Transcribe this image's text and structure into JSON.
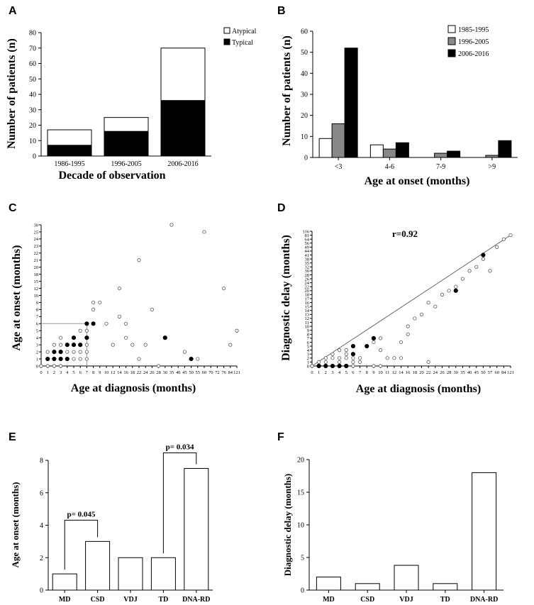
{
  "chart_data": [
    {
      "panel": "A",
      "type": "bar",
      "stacked": true,
      "categories": [
        "1986-1995",
        "1996-2005",
        "2006-2016"
      ],
      "series": [
        {
          "name": "Typical",
          "values": [
            7,
            16,
            36
          ],
          "color": "#000000"
        },
        {
          "name": "Atypical",
          "values": [
            10,
            9,
            34
          ],
          "color": "#ffffff"
        }
      ],
      "legend_order": [
        "Atypical",
        "Typical"
      ],
      "ylabel": "Number of patients (n)",
      "xlabel": "Decade of observation",
      "ylim": [
        0,
        80
      ],
      "yticks": [
        0,
        10,
        20,
        30,
        40,
        50,
        60,
        70,
        80
      ],
      "legend": "top-right"
    },
    {
      "panel": "B",
      "type": "bar",
      "categories": [
        "<3",
        "4-6",
        "7-9",
        ">9"
      ],
      "series": [
        {
          "name": "1985-1995",
          "values": [
            9,
            6,
            0,
            0
          ],
          "color": "#ffffff"
        },
        {
          "name": "1996-2005",
          "values": [
            16,
            4,
            2,
            1
          ],
          "color": "#888888"
        },
        {
          "name": "2006-2016",
          "values": [
            52,
            7,
            3,
            8
          ],
          "color": "#000000"
        }
      ],
      "ylabel": "Number of patients (n)",
      "xlabel": "Age at onset (months)",
      "ylim": [
        0,
        60
      ],
      "yticks": [
        0,
        10,
        20,
        30,
        40,
        50,
        60
      ],
      "legend": "top-right"
    },
    {
      "panel": "C",
      "type": "scatter",
      "xlabel": "Age at diagnosis (months)",
      "ylabel": "Age at onset (months)",
      "xticks": [
        "0",
        "1",
        "2",
        "3",
        "4",
        "5",
        "6",
        "7",
        "8",
        "9",
        "10",
        "12",
        "14",
        "16",
        "18",
        "22",
        "24",
        "26",
        "28",
        "30",
        "35",
        "40",
        "45",
        "50",
        "55",
        "60",
        "70",
        "72",
        "76",
        "84",
        "121"
      ],
      "yticks": [
        "0",
        "1",
        "2",
        "3",
        "4",
        "5",
        "6",
        "7",
        "8",
        "9",
        "10",
        "12",
        "15",
        "18",
        "20",
        "21",
        "22",
        "23",
        "24",
        "25",
        "30"
      ],
      "reference_lines": {
        "x": "7",
        "y": "6"
      },
      "points_open": [
        [
          "0",
          "0"
        ],
        [
          "1",
          "0"
        ],
        [
          "2",
          "0"
        ],
        [
          "3",
          "0"
        ],
        [
          "1",
          "1"
        ],
        [
          "1",
          "2"
        ],
        [
          "2",
          "3"
        ],
        [
          "3",
          "4"
        ],
        [
          "4",
          "2"
        ],
        [
          "2",
          "2"
        ],
        [
          "3",
          "3"
        ],
        [
          "5",
          "2"
        ],
        [
          "5",
          "1"
        ],
        [
          "6",
          "1"
        ],
        [
          "6",
          "2"
        ],
        [
          "6",
          "5"
        ],
        [
          "7",
          "1"
        ],
        [
          "7",
          "2"
        ],
        [
          "7",
          "3"
        ],
        [
          "7",
          "5"
        ],
        [
          "8",
          "8"
        ],
        [
          "8",
          "9"
        ],
        [
          "9",
          "9"
        ],
        [
          "10",
          "6"
        ],
        [
          "12",
          "3"
        ],
        [
          "14",
          "12"
        ],
        [
          "14",
          "7"
        ],
        [
          "16",
          "6"
        ],
        [
          "16",
          "4"
        ],
        [
          "18",
          "3"
        ],
        [
          "22",
          "21"
        ],
        [
          "22",
          "1"
        ],
        [
          "24",
          "3"
        ],
        [
          "26",
          "8"
        ],
        [
          "28",
          "0"
        ],
        [
          "35",
          "30"
        ],
        [
          "45",
          "2"
        ],
        [
          "55",
          "1"
        ],
        [
          "60",
          "25"
        ],
        [
          "76",
          "12"
        ],
        [
          "84",
          "3"
        ],
        [
          "121",
          "5"
        ]
      ],
      "points_filled": [
        [
          "1",
          "1"
        ],
        [
          "2",
          "1"
        ],
        [
          "2",
          "2"
        ],
        [
          "3",
          "1"
        ],
        [
          "3",
          "2"
        ],
        [
          "4",
          "1"
        ],
        [
          "4",
          "3"
        ],
        [
          "5",
          "3"
        ],
        [
          "5",
          "4"
        ],
        [
          "6",
          "3"
        ],
        [
          "7",
          "6"
        ],
        [
          "7",
          "4"
        ],
        [
          "8",
          "6"
        ],
        [
          "30",
          "4"
        ],
        [
          "50",
          "1"
        ]
      ]
    },
    {
      "panel": "D",
      "type": "scatter",
      "xlabel": "Age at diagnosis (months)",
      "ylabel": "Diagnostic delay (months)",
      "annotation": "r=0.92",
      "xticks": [
        "0",
        "1",
        "2",
        "3",
        "4",
        "5",
        "6",
        "7",
        "8",
        "9",
        "10",
        "11",
        "12",
        "14",
        "16",
        "18",
        "20",
        "22",
        "24",
        "26",
        "28",
        "30",
        "35",
        "40",
        "45",
        "50",
        "57",
        "60",
        "84",
        "121"
      ],
      "yticks": [
        "0",
        "1",
        "2",
        "3",
        "4",
        "5",
        "6",
        "7",
        "8",
        "9",
        "10",
        "11",
        "12",
        "13",
        "14",
        "15",
        "16",
        "17",
        "18",
        "20",
        "22",
        "24",
        "26",
        "28",
        "30",
        "32",
        "35",
        "38",
        "41",
        "44",
        "49",
        "56",
        "64",
        "81",
        "116"
      ],
      "regression_line": {
        "from": [
          "0",
          "0"
        ],
        "to": [
          "121",
          "81"
        ]
      },
      "points_open": [
        [
          "0",
          "0"
        ],
        [
          "1",
          "1"
        ],
        [
          "2",
          "1"
        ],
        [
          "2",
          "2"
        ],
        [
          "3",
          "2"
        ],
        [
          "3",
          "3"
        ],
        [
          "4",
          "1"
        ],
        [
          "4",
          "2"
        ],
        [
          "4",
          "4"
        ],
        [
          "5",
          "2"
        ],
        [
          "5",
          "3"
        ],
        [
          "5",
          "4"
        ],
        [
          "6",
          "0"
        ],
        [
          "6",
          "1"
        ],
        [
          "6",
          "2"
        ],
        [
          "7",
          "1"
        ],
        [
          "7",
          "2"
        ],
        [
          "9",
          "0"
        ],
        [
          "9",
          "6"
        ],
        [
          "10",
          "0"
        ],
        [
          "10",
          "4"
        ],
        [
          "10",
          "7"
        ],
        [
          "11",
          "2"
        ],
        [
          "12",
          "2"
        ],
        [
          "14",
          "2"
        ],
        [
          "14",
          "6"
        ],
        [
          "16",
          "8"
        ],
        [
          "16",
          "10"
        ],
        [
          "18",
          "12"
        ],
        [
          "20",
          "13"
        ],
        [
          "22",
          "1"
        ],
        [
          "22",
          "16"
        ],
        [
          "24",
          "15"
        ],
        [
          "26",
          "18"
        ],
        [
          "28",
          "20"
        ],
        [
          "30",
          "22"
        ],
        [
          "35",
          "26"
        ],
        [
          "40",
          "30"
        ],
        [
          "45",
          "32"
        ],
        [
          "50",
          "38"
        ],
        [
          "57",
          "30"
        ],
        [
          "60",
          "49"
        ],
        [
          "84",
          "64"
        ],
        [
          "121",
          "81"
        ]
      ],
      "points_filled": [
        [
          "1",
          "0"
        ],
        [
          "2",
          "0"
        ],
        [
          "3",
          "0"
        ],
        [
          "4",
          "0"
        ],
        [
          "5",
          "0"
        ],
        [
          "6",
          "3"
        ],
        [
          "6",
          "5"
        ],
        [
          "8",
          "5"
        ],
        [
          "9",
          "7"
        ],
        [
          "30",
          "20"
        ],
        [
          "50",
          "41"
        ]
      ]
    },
    {
      "panel": "E",
      "type": "bar",
      "categories": [
        "MD",
        "CSD",
        "VDJ",
        "TD",
        "DNA-RD"
      ],
      "values": [
        1,
        3,
        2,
        2,
        7.5
      ],
      "ylabel": "Age at onset (months)",
      "ylim": [
        0,
        8
      ],
      "yticks": [
        0,
        2,
        4,
        6,
        8
      ],
      "annotations": [
        {
          "label": "p= 0.045",
          "from": "MD",
          "to": "CSD"
        },
        {
          "label": "p= 0.034",
          "from": "TD",
          "to": "DNA-RD"
        }
      ]
    },
    {
      "panel": "F",
      "type": "bar",
      "categories": [
        "MD",
        "CSD",
        "VDJ",
        "TD",
        "DNA-RD"
      ],
      "values": [
        2,
        1,
        3.8,
        1,
        18
      ],
      "ylabel": "Diagnostic delay (months)",
      "ylim": [
        0,
        20
      ],
      "yticks": [
        0,
        5,
        10,
        15,
        20
      ]
    }
  ]
}
